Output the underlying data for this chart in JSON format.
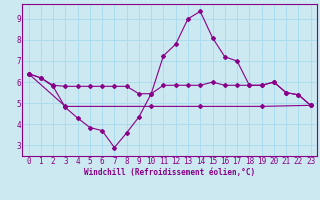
{
  "bg_color": "#cce8f0",
  "grid_color": "#aaddee",
  "line_color": "#880088",
  "xlabel": "Windchill (Refroidissement éolien,°C)",
  "xlim": [
    -0.5,
    23.5
  ],
  "ylim": [
    2.5,
    9.7
  ],
  "yticks": [
    3,
    4,
    5,
    6,
    7,
    8,
    9
  ],
  "xticks": [
    0,
    1,
    2,
    3,
    4,
    5,
    6,
    7,
    8,
    9,
    10,
    11,
    12,
    13,
    14,
    15,
    16,
    17,
    18,
    19,
    20,
    21,
    22,
    23
  ],
  "line1_x": [
    0,
    1,
    2,
    3,
    4,
    5,
    6,
    7,
    8,
    9,
    10,
    11,
    12,
    13,
    14,
    15,
    16,
    17,
    18,
    19,
    20,
    21,
    22,
    23
  ],
  "line1_y": [
    6.4,
    6.2,
    5.8,
    4.8,
    4.3,
    3.85,
    3.7,
    2.9,
    3.6,
    4.35,
    5.45,
    7.25,
    7.8,
    9.0,
    9.35,
    8.1,
    7.2,
    7.0,
    5.85,
    5.85,
    6.0,
    5.5,
    5.4,
    4.9
  ],
  "line2_x": [
    0,
    1,
    2,
    3,
    4,
    5,
    6,
    7,
    8,
    9,
    10,
    11,
    12,
    13,
    14,
    15,
    16,
    17,
    18,
    19,
    20,
    21,
    22,
    23
  ],
  "line2_y": [
    6.4,
    6.2,
    5.85,
    5.8,
    5.8,
    5.8,
    5.8,
    5.8,
    5.8,
    5.45,
    5.45,
    5.85,
    5.85,
    5.85,
    5.85,
    6.0,
    5.85,
    5.85,
    5.85,
    5.85,
    6.0,
    5.5,
    5.4,
    4.9
  ],
  "line3_x": [
    0,
    3,
    10,
    14,
    19,
    23
  ],
  "line3_y": [
    6.4,
    4.85,
    4.85,
    4.85,
    4.85,
    4.9
  ],
  "tick_fontsize": 5.5,
  "xlabel_fontsize": 5.5
}
